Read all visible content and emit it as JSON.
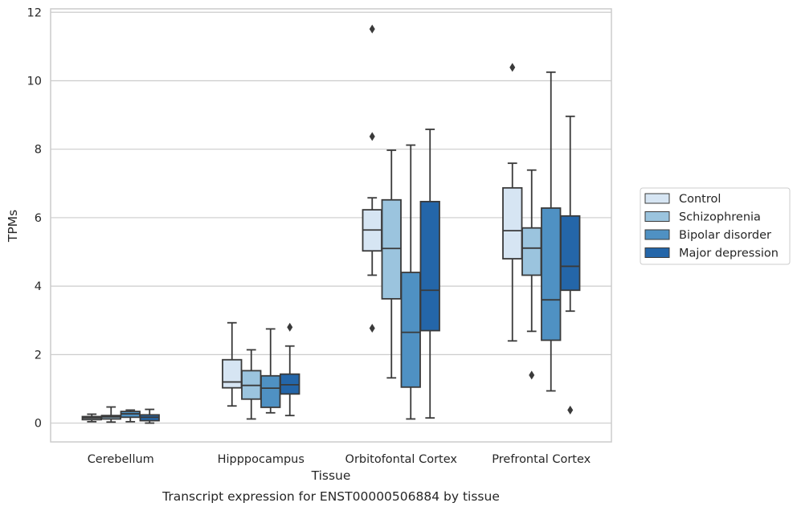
{
  "chart_data": {
    "type": "boxplot",
    "xlabel": "Tissue",
    "ylabel": "TPMs",
    "ylim": [
      -0.55,
      12.1
    ],
    "yticks": [
      0,
      2,
      4,
      6,
      8,
      10,
      12
    ],
    "grid": "horizontal",
    "legend_position": "right",
    "caption": "Transcript expression for ENST00000506884 by tissue",
    "categories": [
      "Cerebellum",
      "Hipppocampus",
      "Orbitofontal Cortex",
      "Prefrontal Cortex"
    ],
    "series": [
      {
        "name": "Control",
        "color": "#d6e5f3",
        "boxes": [
          {
            "whisker_low": 0.04,
            "q1": 0.1,
            "median": 0.15,
            "q3": 0.19,
            "whisker_high": 0.26,
            "outliers": []
          },
          {
            "whisker_low": 0.5,
            "q1": 1.03,
            "median": 1.2,
            "q3": 1.85,
            "whisker_high": 2.93,
            "outliers": []
          },
          {
            "whisker_low": 4.32,
            "q1": 5.03,
            "median": 5.64,
            "q3": 6.23,
            "whisker_high": 6.58,
            "outliers": [
              2.77,
              8.37,
              11.51
            ]
          },
          {
            "whisker_low": 2.4,
            "q1": 4.8,
            "median": 5.62,
            "q3": 6.87,
            "whisker_high": 7.59,
            "outliers": [
              10.39
            ]
          }
        ]
      },
      {
        "name": "Schizophrenia",
        "color": "#9bc4de",
        "boxes": [
          {
            "whisker_low": 0.03,
            "q1": 0.12,
            "median": 0.18,
            "q3": 0.22,
            "whisker_high": 0.47,
            "outliers": []
          },
          {
            "whisker_low": 0.12,
            "q1": 0.7,
            "median": 1.1,
            "q3": 1.53,
            "whisker_high": 2.14,
            "outliers": []
          },
          {
            "whisker_low": 1.32,
            "q1": 3.63,
            "median": 5.1,
            "q3": 6.52,
            "whisker_high": 7.97,
            "outliers": []
          },
          {
            "whisker_low": 2.68,
            "q1": 4.32,
            "median": 5.11,
            "q3": 5.7,
            "whisker_high": 7.39,
            "outliers": [
              1.4
            ]
          }
        ]
      },
      {
        "name": "Bipolar disorder",
        "color": "#4f91c3",
        "boxes": [
          {
            "whisker_low": 0.04,
            "q1": 0.17,
            "median": 0.27,
            "q3": 0.34,
            "whisker_high": 0.38,
            "outliers": []
          },
          {
            "whisker_low": 0.3,
            "q1": 0.46,
            "median": 1.02,
            "q3": 1.38,
            "whisker_high": 2.75,
            "outliers": []
          },
          {
            "whisker_low": 0.12,
            "q1": 1.05,
            "median": 2.65,
            "q3": 4.4,
            "whisker_high": 8.12,
            "outliers": []
          },
          {
            "whisker_low": 0.94,
            "q1": 2.42,
            "median": 3.6,
            "q3": 6.28,
            "whisker_high": 10.25,
            "outliers": []
          }
        ]
      },
      {
        "name": "Major depression",
        "color": "#2466a9",
        "boxes": [
          {
            "whisker_low": 0.0,
            "q1": 0.07,
            "median": 0.17,
            "q3": 0.24,
            "whisker_high": 0.4,
            "outliers": []
          },
          {
            "whisker_low": 0.22,
            "q1": 0.85,
            "median": 1.12,
            "q3": 1.43,
            "whisker_high": 2.25,
            "outliers": [
              2.8
            ]
          },
          {
            "whisker_low": 0.15,
            "q1": 2.7,
            "median": 3.88,
            "q3": 6.47,
            "whisker_high": 8.58,
            "outliers": []
          },
          {
            "whisker_low": 3.27,
            "q1": 3.88,
            "median": 4.58,
            "q3": 6.05,
            "whisker_high": 8.96,
            "outliers": [
              0.38
            ]
          }
        ]
      }
    ]
  }
}
